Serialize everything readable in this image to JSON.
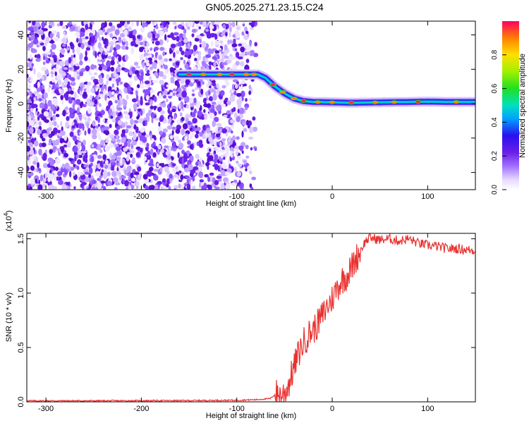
{
  "title": "GN05.2025.271.23.15.C24",
  "chart_data": [
    {
      "type": "heatmap",
      "xlabel": "Height of straight line (km)",
      "ylabel": "Frequency (Hz)",
      "xlim": [
        -320,
        150
      ],
      "ylim": [
        -50,
        48
      ],
      "xticks": [
        -300,
        -200,
        -100,
        0,
        100
      ],
      "yticks": [
        -40,
        -20,
        0,
        20,
        40
      ],
      "colorbar": {
        "label": "Normalized spectral amplitude",
        "range": [
          0,
          1
        ],
        "ticks": [
          0.0,
          0.2,
          0.4,
          0.6,
          0.8
        ]
      },
      "ridge": {
        "x": [
          -160,
          -100,
          -78,
          -70,
          -60,
          -50,
          -40,
          -30,
          -20,
          0,
          20,
          50,
          80,
          100,
          120,
          150
        ],
        "y": [
          17,
          17,
          17,
          15,
          10,
          6,
          3,
          1.5,
          1,
          0.8,
          0.5,
          0.8,
          1,
          1.2,
          1,
          1
        ]
      },
      "noise_region_x": [
        -320,
        -80
      ]
    },
    {
      "type": "line",
      "xlabel": "Height of straight line (km)",
      "ylabel": "SNR (10 * v/v)",
      "y_multiplier_label": "(x10",
      "y_multiplier_exp": "4",
      "y_multiplier_close": ")",
      "xlim": [
        -320,
        150
      ],
      "ylim": [
        0,
        15500
      ],
      "xticks": [
        -300,
        -200,
        -100,
        0,
        100
      ],
      "yticks": [
        0,
        5000,
        10000,
        15000
      ],
      "ytick_labels": [
        "0.0",
        "0.5",
        "1.0",
        "1.5"
      ],
      "series": [
        {
          "color": "#e8312f",
          "x": [
            -320,
            -250,
            -200,
            -150,
            -100,
            -80,
            -65,
            -58,
            -55,
            -50,
            -45,
            -40,
            -35,
            -30,
            -25,
            -20,
            -15,
            -10,
            -5,
            0,
            5,
            10,
            15,
            20,
            25,
            30,
            35,
            40,
            50,
            60,
            70,
            80,
            90,
            100,
            110,
            120,
            130,
            140,
            150
          ],
          "y": [
            100,
            100,
            110,
            120,
            150,
            200,
            300,
            800,
            600,
            800,
            1800,
            3200,
            4500,
            5500,
            6200,
            6600,
            7200,
            8000,
            8800,
            9500,
            10500,
            11200,
            11600,
            12300,
            13200,
            14000,
            14800,
            15100,
            14900,
            15000,
            14800,
            15000,
            14600,
            14400,
            14300,
            14100,
            14100,
            14000,
            13900
          ]
        }
      ]
    }
  ]
}
